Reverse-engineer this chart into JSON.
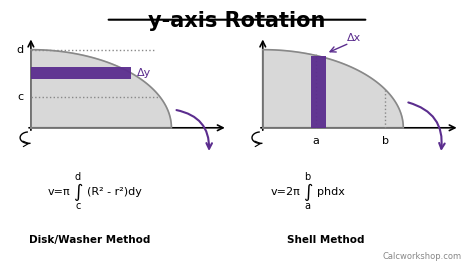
{
  "title": "y-axis Rotation",
  "title_fontsize": 15,
  "background_color": "#ffffff",
  "purple_color": "#5b2d8e",
  "gray_fill": "#cccccc",
  "left_diagram": {
    "method_label": "Disk/Washer Method"
  },
  "right_diagram": {
    "method_label": "Shell Method"
  },
  "watermark": "Calcworkshop.com"
}
